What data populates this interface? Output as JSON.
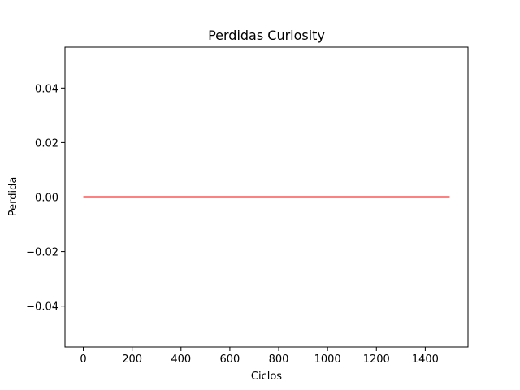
{
  "chart_data": {
    "type": "line",
    "title": "Perdidas Curiosity",
    "xlabel": "Ciclos",
    "ylabel": "Perdida",
    "xlim": [
      -75,
      1575
    ],
    "ylim": [
      -0.055,
      0.055
    ],
    "xticks": [
      0,
      200,
      400,
      600,
      800,
      1000,
      1200,
      1400
    ],
    "xtick_labels": [
      "0",
      "200",
      "400",
      "600",
      "800",
      "1000",
      "1200",
      "1400"
    ],
    "yticks": [
      -0.04,
      -0.02,
      0.0,
      0.02,
      0.04
    ],
    "ytick_labels": [
      "−0.04",
      "−0.02",
      "0.00",
      "0.02",
      "0.04"
    ],
    "grid": false,
    "series": [
      {
        "color": "#ff0000",
        "x": [
          0,
          1500
        ],
        "y": [
          0,
          0
        ]
      }
    ]
  }
}
